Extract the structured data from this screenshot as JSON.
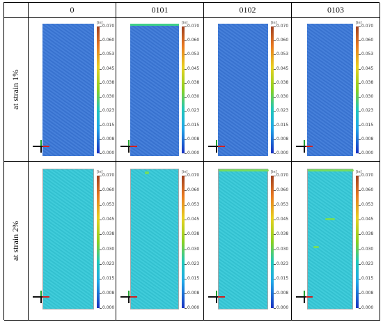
{
  "headers": [
    "",
    "0",
    "0101",
    "0102",
    "0103"
  ],
  "rows": [
    {
      "label": "at strain 1%"
    },
    {
      "label": "at strain 2%"
    }
  ],
  "colorbar": {
    "unit": "[in]",
    "ticks": [
      "0.070",
      "0.060",
      "0.053",
      "0.045",
      "0.038",
      "0.030",
      "0.023",
      "0.015",
      "0.008",
      "0.000"
    ],
    "colors": [
      "#a04020",
      "#e87820",
      "#e8d020",
      "#88d020",
      "#20c8b8",
      "#20a8e8",
      "#1830c0"
    ]
  },
  "panels": [
    {
      "name": "strain1-0",
      "specimen_color": "#3c79d8"
    },
    {
      "name": "strain1-0101",
      "specimen_color": "#3c79d8"
    },
    {
      "name": "strain1-0102",
      "specimen_color": "#3c79d8"
    },
    {
      "name": "strain1-0103",
      "specimen_color": "#3c79d8"
    },
    {
      "name": "strain2-0",
      "specimen_color": "#36c9d8"
    },
    {
      "name": "strain2-0101",
      "specimen_color": "#36c9d8"
    },
    {
      "name": "strain2-0102",
      "specimen_color": "#36c9d8"
    },
    {
      "name": "strain2-0103",
      "specimen_color": "#36c9d8"
    }
  ]
}
